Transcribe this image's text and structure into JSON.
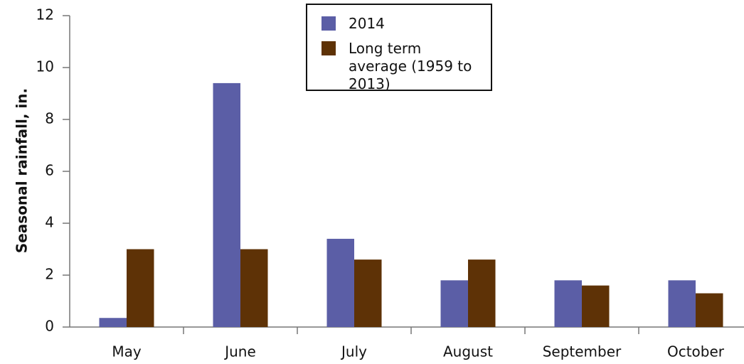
{
  "chart_data": {
    "type": "bar",
    "y_label": "Seasonal rainfall, in.",
    "categories": [
      "May",
      "June",
      "July",
      "August",
      "September",
      "October"
    ],
    "series": [
      {
        "name": "2014",
        "color": "#5b5ea6",
        "values": [
          0.35,
          9.4,
          3.4,
          1.8,
          1.8,
          1.8
        ]
      },
      {
        "name": "Long term average (1959 to 2013)",
        "color": "#5e3206",
        "values": [
          3.0,
          3.0,
          2.6,
          2.6,
          1.6,
          1.3
        ]
      }
    ],
    "ylim": [
      0,
      12
    ],
    "yticks": [
      0,
      2,
      4,
      6,
      8,
      10,
      12
    ],
    "grid": false,
    "legend": "top"
  }
}
